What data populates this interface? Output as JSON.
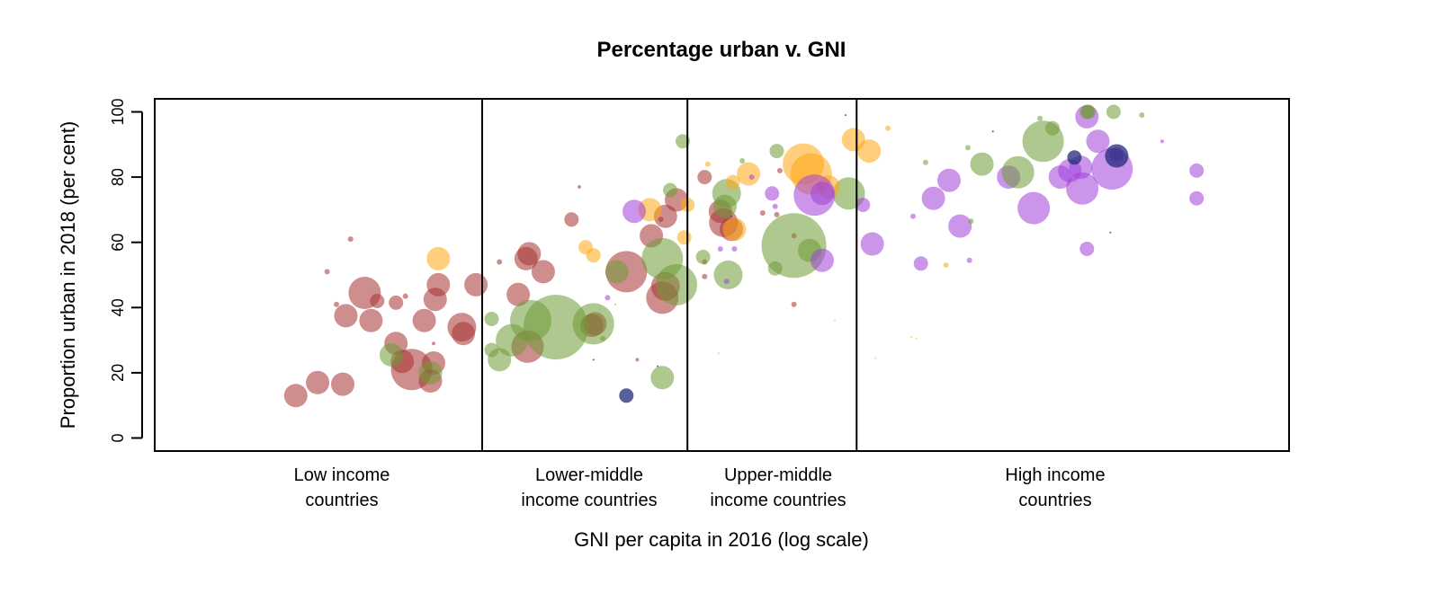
{
  "chart_data": {
    "type": "scatter",
    "title": "Percentage urban v. GNI",
    "xlabel": "GNI per capita in 2016 (log scale)",
    "ylabel": "Proportion urban in 2018 (per cent)",
    "ylim": [
      -4,
      104
    ],
    "xlim": [
      4.92,
      12.16
    ],
    "x_scale": "log",
    "y_ticks": [
      "0",
      "20",
      "40",
      "60",
      "80",
      "100"
    ],
    "grid": false,
    "legend": "none",
    "income_bands": [
      {
        "label_line1": "Low income",
        "label_line2": "countries",
        "from_x": 4.92,
        "to_x": 7.01
      },
      {
        "label_line1": "Lower-middle",
        "label_line2": "income countries",
        "from_x": 7.01,
        "to_x": 8.32
      },
      {
        "label_line1": "Upper-middle",
        "label_line2": "income countries",
        "from_x": 8.32,
        "to_x": 9.4
      },
      {
        "label_line1": "High income",
        "label_line2": "countries",
        "from_x": 9.4,
        "to_x": 12.16
      }
    ],
    "colors": {
      "red": "#a83232",
      "green": "#6e9a35",
      "orange": "#ffa812",
      "purple": "#a040d8",
      "navy": "#222a7a"
    },
    "points": [
      [
        "red",
        5.82,
        13,
        13
      ],
      [
        "red",
        5.96,
        17,
        13
      ],
      [
        "red",
        6.12,
        16.5,
        13
      ],
      [
        "red",
        6.02,
        51,
        3
      ],
      [
        "red",
        6.17,
        61,
        3
      ],
      [
        "red",
        6.08,
        41,
        3
      ],
      [
        "red",
        6.14,
        37.5,
        13
      ],
      [
        "red",
        6.26,
        44.5,
        18
      ],
      [
        "red",
        6.3,
        36,
        13
      ],
      [
        "red",
        6.34,
        42,
        8
      ],
      [
        "red",
        6.46,
        41.5,
        8
      ],
      [
        "red",
        6.46,
        29,
        13
      ],
      [
        "red",
        6.52,
        43.5,
        3
      ],
      [
        "red",
        6.5,
        23.5,
        13
      ],
      [
        "red",
        6.56,
        21,
        23
      ],
      [
        "red",
        6.64,
        36,
        13
      ],
      [
        "red",
        6.71,
        42.5,
        13
      ],
      [
        "red",
        6.73,
        47,
        13
      ],
      [
        "red",
        6.88,
        34,
        16
      ],
      [
        "red",
        6.89,
        32,
        13
      ],
      [
        "red",
        6.97,
        47,
        13
      ],
      [
        "red",
        6.68,
        17.5,
        13
      ],
      [
        "red",
        6.7,
        23,
        13
      ],
      [
        "red",
        6.7,
        29,
        2
      ],
      [
        "green",
        6.43,
        25.5,
        13
      ],
      [
        "green",
        6.68,
        20,
        13
      ],
      [
        "orange",
        6.73,
        55,
        13
      ],
      [
        "red",
        7.12,
        54,
        3
      ],
      [
        "red",
        7.29,
        55,
        13
      ],
      [
        "red",
        7.31,
        56.5,
        13
      ],
      [
        "red",
        7.24,
        44,
        13
      ],
      [
        "red",
        7.4,
        51,
        13
      ],
      [
        "red",
        7.3,
        28,
        18
      ],
      [
        "red",
        7.58,
        67,
        8
      ],
      [
        "red",
        7.73,
        35,
        13
      ],
      [
        "red",
        7.71,
        34.5,
        13
      ],
      [
        "red",
        7.93,
        51,
        23
      ],
      [
        "red",
        8.09,
        62,
        13
      ],
      [
        "red",
        8.18,
        68,
        13
      ],
      [
        "red",
        8.25,
        73,
        13
      ],
      [
        "red",
        8.15,
        67,
        3
      ],
      [
        "red",
        8.16,
        43,
        18
      ],
      [
        "red",
        8.18,
        46.5,
        16
      ],
      [
        "red",
        7.63,
        77,
        2
      ],
      [
        "red",
        8.0,
        24,
        2
      ],
      [
        "green",
        7.07,
        36.5,
        8
      ],
      [
        "green",
        7.07,
        27,
        8
      ],
      [
        "green",
        7.12,
        24,
        13
      ],
      [
        "green",
        7.2,
        30,
        18
      ],
      [
        "green",
        7.32,
        36,
        23
      ],
      [
        "green",
        7.48,
        34,
        36
      ],
      [
        "green",
        7.72,
        35,
        23
      ],
      [
        "green",
        7.78,
        30.5,
        3
      ],
      [
        "green",
        7.87,
        51,
        13
      ],
      [
        "green",
        8.16,
        55,
        23
      ],
      [
        "green",
        8.25,
        47,
        23
      ],
      [
        "green",
        8.16,
        18.5,
        13
      ],
      [
        "green",
        8.21,
        76,
        8
      ],
      [
        "green",
        8.29,
        91,
        8
      ],
      [
        "green",
        7.86,
        41,
        1
      ],
      [
        "orange",
        7.67,
        58.5,
        8
      ],
      [
        "orange",
        7.72,
        56,
        8
      ],
      [
        "orange",
        8.08,
        70,
        13
      ],
      [
        "orange",
        8.3,
        61.5,
        8
      ],
      [
        "orange",
        8.32,
        71.5,
        8
      ],
      [
        "purple",
        7.81,
        43,
        3
      ],
      [
        "purple",
        7.98,
        69.5,
        13
      ],
      [
        "navy",
        7.93,
        13,
        8
      ],
      [
        "navy",
        7.72,
        24,
        1
      ],
      [
        "navy",
        8.13,
        22,
        1
      ],
      [
        "red",
        8.43,
        80,
        8
      ],
      [
        "red",
        8.55,
        66,
        16
      ],
      [
        "red",
        8.53,
        69.5,
        13
      ],
      [
        "red",
        8.6,
        64,
        13
      ],
      [
        "red",
        8.43,
        54,
        3
      ],
      [
        "red",
        8.43,
        49.5,
        3
      ],
      [
        "red",
        8.8,
        69,
        3
      ],
      [
        "red",
        8.89,
        68.5,
        3
      ],
      [
        "red",
        9.0,
        62,
        3
      ],
      [
        "red",
        9.0,
        41,
        3
      ],
      [
        "red",
        8.91,
        82,
        3
      ],
      [
        "green",
        8.57,
        75,
        16
      ],
      [
        "green",
        8.67,
        85,
        3
      ],
      [
        "green",
        8.89,
        88,
        8
      ],
      [
        "green",
        9.0,
        59,
        36
      ],
      [
        "green",
        9.1,
        57.5,
        13
      ],
      [
        "green",
        9.35,
        75,
        18
      ],
      [
        "green",
        8.58,
        50,
        16
      ],
      [
        "green",
        8.88,
        52,
        8
      ],
      [
        "green",
        8.42,
        55.5,
        8
      ],
      [
        "green",
        8.56,
        71,
        13
      ],
      [
        "orange",
        8.45,
        84,
        3
      ],
      [
        "orange",
        8.61,
        78.5,
        8
      ],
      [
        "orange",
        8.71,
        81,
        13
      ],
      [
        "orange",
        8.62,
        64,
        13
      ],
      [
        "orange",
        8.52,
        26,
        1
      ],
      [
        "orange",
        9.06,
        84,
        23
      ],
      [
        "orange",
        9.11,
        81,
        23
      ],
      [
        "orange",
        9.22,
        77,
        13
      ],
      [
        "orange",
        9.38,
        91.5,
        13
      ],
      [
        "orange",
        9.48,
        88,
        13
      ],
      [
        "orange",
        9.26,
        36,
        1
      ],
      [
        "purple",
        8.73,
        80,
        3
      ],
      [
        "purple",
        8.86,
        75,
        8
      ],
      [
        "purple",
        9.13,
        74.5,
        23
      ],
      [
        "purple",
        9.18,
        75,
        13
      ],
      [
        "purple",
        9.18,
        54.5,
        13
      ],
      [
        "purple",
        8.88,
        71,
        3
      ],
      [
        "purple",
        8.57,
        48,
        3
      ],
      [
        "purple",
        8.53,
        58,
        3
      ],
      [
        "purple",
        8.62,
        58,
        3
      ],
      [
        "navy",
        8.6,
        68,
        1
      ],
      [
        "navy",
        9.33,
        99,
        1
      ],
      [
        "purple",
        9.44,
        71.5,
        8
      ],
      [
        "purple",
        9.5,
        59.5,
        13
      ],
      [
        "purple",
        9.76,
        68,
        3
      ],
      [
        "purple",
        9.81,
        53.5,
        8
      ],
      [
        "purple",
        9.89,
        73.5,
        13
      ],
      [
        "purple",
        9.99,
        79,
        13
      ],
      [
        "purple",
        10.06,
        65,
        13
      ],
      [
        "purple",
        10.12,
        54.5,
        3
      ],
      [
        "purple",
        10.37,
        80,
        13
      ],
      [
        "purple",
        10.53,
        70.5,
        18
      ],
      [
        "purple",
        10.7,
        80,
        13
      ],
      [
        "purple",
        10.76,
        82,
        13
      ],
      [
        "purple",
        10.83,
        83,
        13
      ],
      [
        "purple",
        10.84,
        76.5,
        18
      ],
      [
        "purple",
        10.87,
        98.5,
        13
      ],
      [
        "purple",
        10.94,
        91,
        13
      ],
      [
        "purple",
        11.03,
        82.5,
        23
      ],
      [
        "purple",
        11.06,
        87,
        8
      ],
      [
        "purple",
        10.87,
        58,
        8
      ],
      [
        "purple",
        11.57,
        82,
        8
      ],
      [
        "purple",
        11.57,
        73.5,
        8
      ],
      [
        "purple",
        11.35,
        91,
        2
      ],
      [
        "green",
        9.84,
        84.5,
        3
      ],
      [
        "green",
        10.11,
        89,
        3
      ],
      [
        "green",
        10.2,
        84,
        13
      ],
      [
        "green",
        10.43,
        81.5,
        18
      ],
      [
        "green",
        10.59,
        91,
        23
      ],
      [
        "green",
        10.57,
        98,
        3
      ],
      [
        "green",
        10.88,
        100,
        8
      ],
      [
        "green",
        11.04,
        100,
        8
      ],
      [
        "green",
        11.22,
        99,
        3
      ],
      [
        "green",
        10.65,
        95,
        8
      ],
      [
        "green",
        10.87,
        100,
        8
      ],
      [
        "green",
        10.13,
        66.5,
        3
      ],
      [
        "navy",
        10.79,
        86,
        8
      ],
      [
        "navy",
        11.06,
        86.5,
        13
      ],
      [
        "navy",
        10.27,
        94,
        1
      ],
      [
        "navy",
        11.02,
        63,
        1
      ],
      [
        "orange",
        9.75,
        31,
        1
      ],
      [
        "orange",
        9.78,
        30.5,
        1
      ],
      [
        "orange",
        9.6,
        95,
        3
      ],
      [
        "orange",
        9.52,
        24.5,
        1
      ],
      [
        "orange",
        9.97,
        53,
        3
      ]
    ]
  }
}
